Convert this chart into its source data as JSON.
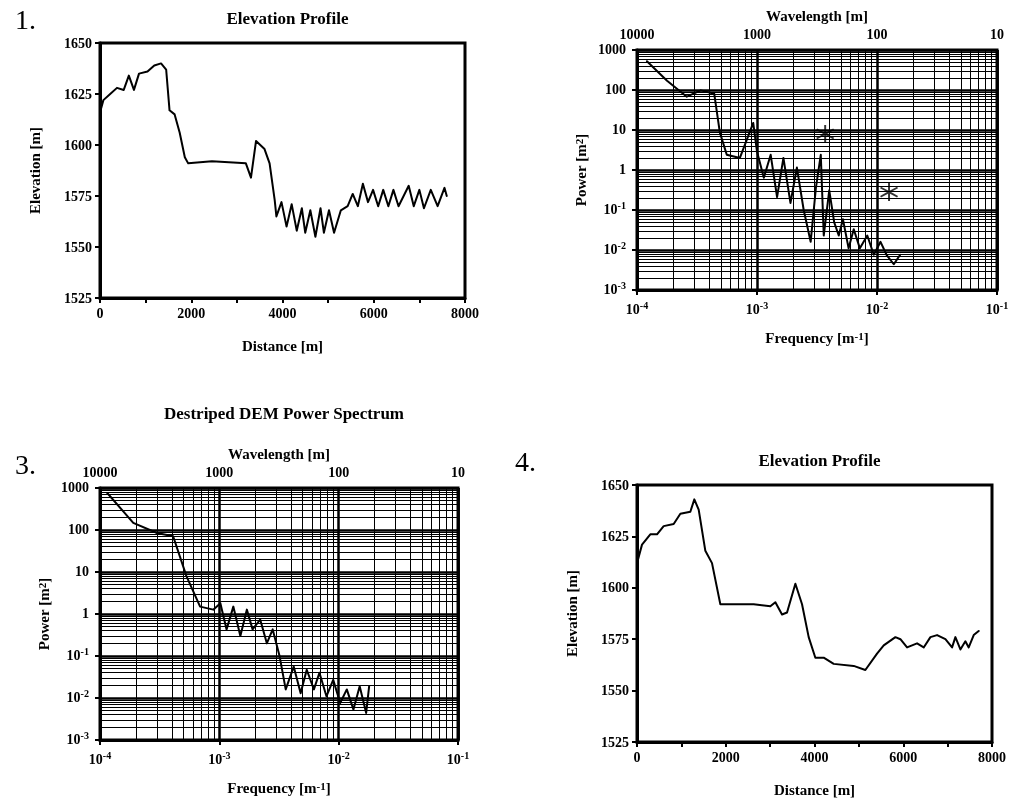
{
  "chart_data": [
    {
      "type": "line",
      "title": "Elevation Profile",
      "xlabel": "Distance [m]",
      "ylabel": "Elevation [m]",
      "annotations": [
        "1."
      ],
      "color": "#000000",
      "grid": false,
      "x": [
        0,
        74,
        223,
        372,
        520,
        632,
        744,
        855,
        1041,
        1190,
        1338,
        1450,
        1524,
        1636,
        1747,
        1859,
        1933,
        2454,
        3197,
        3309,
        3420,
        3606,
        3717,
        3829,
        3866,
        3978,
        4089,
        4201,
        4312,
        4424,
        4498,
        4610,
        4721,
        4833,
        4907,
        5019,
        5130,
        5279,
        5428,
        5539,
        5651,
        5762,
        5874,
        5985,
        6097,
        6208,
        6320,
        6431,
        6543,
        6766,
        6877,
        7000,
        7100,
        7250,
        7400,
        7550,
        7600
      ],
      "values": [
        1616,
        1622,
        1625,
        1628,
        1627,
        1634,
        1627,
        1635,
        1636,
        1639,
        1640,
        1637,
        1617,
        1615,
        1606,
        1594,
        1591,
        1592,
        1591,
        1584,
        1602,
        1598,
        1591,
        1573,
        1565,
        1572,
        1560,
        1571,
        1558,
        1569,
        1557,
        1568,
        1555,
        1569,
        1557,
        1568,
        1557,
        1568,
        1570,
        1576,
        1570,
        1581,
        1572,
        1578,
        1570,
        1578,
        1570,
        1578,
        1570,
        1580,
        1570,
        1578,
        1569,
        1578,
        1570,
        1579,
        1575
      ],
      "xlim": [
        0,
        8000
      ],
      "xticks": [
        0,
        {
          "value": 1000,
          "label": null
        },
        2000,
        {
          "value": 3000,
          "label": null
        },
        4000,
        {
          "value": 5000,
          "label": null
        },
        6000,
        {
          "value": 7000,
          "label": null
        },
        8000
      ],
      "ylim": [
        1525,
        1650
      ],
      "yticks": [
        1525,
        1550,
        1575,
        1600,
        1625,
        1650
      ]
    },
    {
      "type": "line",
      "xlabel": "Frequency [m$^{-1}$]",
      "ylabel": "Power [m$^{2}$]",
      "x2label": "Wavelength [m]",
      "log": "xy",
      "grid": true,
      "annotations": [
        "10000",
        "1000",
        "100",
        "10"
      ],
      "series": [
        {
          "type": "line",
          "color": "#000000",
          "x": [
            0.000121,
            0.000178,
            0.00026,
            0.00034,
            0.00044,
            0.00049,
            0.00056,
            0.00072,
            0.00093,
            0.001,
            0.00114,
            0.0013,
            0.00147,
            0.00166,
            0.0019,
            0.00215,
            0.00245,
            0.0028,
            0.0031,
            0.0034,
            0.0036,
            0.004,
            0.0044,
            0.0048,
            0.0052,
            0.0058,
            0.0064,
            0.0072,
            0.0083,
            0.0094,
            0.0107,
            0.012,
            0.0138,
            0.0156
          ],
          "values": [
            525,
            170,
            68,
            98,
            81,
            8.7,
            2.4,
            2,
            15,
            2.9,
            0.64,
            2.4,
            0.21,
            2,
            0.15,
            1.15,
            0.1,
            0.016,
            0.37,
            2.4,
            0.023,
            0.31,
            0.049,
            0.023,
            0.059,
            0.011,
            0.033,
            0.011,
            0.023,
            0.0076,
            0.016,
            0.0076,
            0.0044,
            0.0076
          ]
        },
        {
          "type": "scatter",
          "marker": "star",
          "color": "#000000",
          "x": [
            0.0037,
            0.0126
          ],
          "values": [
            8,
            0.28
          ]
        }
      ],
      "xlim": [
        0.0001,
        0.1
      ],
      "xticks": [
        {
          "value": 0.0001,
          "label": "10$^{-4}$"
        },
        {
          "value": 0.001,
          "label": "10$^{-3}$"
        },
        {
          "value": 0.01,
          "label": "10$^{-2}$"
        },
        {
          "value": 0.1,
          "label": "10$^{-1}$"
        }
      ],
      "ylim": [
        0.001,
        1000
      ],
      "yticks": [
        {
          "value": 0.001,
          "label": "10$^{-3}$"
        },
        {
          "value": 0.01,
          "label": "10$^{-2}$"
        },
        {
          "value": 0.1,
          "label": "10$^{-1}$"
        },
        1,
        10,
        100,
        1000
      ]
    },
    {
      "type": "line",
      "title": "Destriped DEM Power Spectrum",
      "xlabel": "Frequency [m$^{-1}$]",
      "ylabel": "Power [m$^{2}$]",
      "x2label": "Wavelength [m]",
      "annotations": [
        "3.",
        "10000",
        "1000",
        "100",
        "10"
      ],
      "log": "xy",
      "grid": true,
      "color": "#000000",
      "x": [
        0.000115,
        0.00019,
        0.0003,
        0.00041,
        0.00053,
        0.00069,
        0.00089,
        0.00102,
        0.00115,
        0.00131,
        0.0015,
        0.0017,
        0.0019,
        0.0022,
        0.0025,
        0.0028,
        0.0032,
        0.0036,
        0.0042,
        0.0048,
        0.0054,
        0.0062,
        0.0069,
        0.0079,
        0.009,
        0.0103,
        0.0117,
        0.0133,
        0.015,
        0.017,
        0.018
      ],
      "values": [
        760,
        148,
        85,
        71,
        8,
        1.5,
        1.27,
        1.8,
        0.43,
        1.5,
        0.3,
        1.27,
        0.43,
        0.74,
        0.2,
        0.43,
        0.098,
        0.016,
        0.056,
        0.013,
        0.047,
        0.016,
        0.04,
        0.011,
        0.027,
        0.0076,
        0.016,
        0.0053,
        0.019,
        0.0044,
        0.019
      ],
      "xlim": [
        0.0001,
        0.1
      ],
      "xticks": [
        {
          "value": 0.0001,
          "label": "10$^{-4}$"
        },
        {
          "value": 0.001,
          "label": "10$^{-3}$"
        },
        {
          "value": 0.01,
          "label": "10$^{-2}$"
        },
        {
          "value": 0.1,
          "label": "10$^{-1}$"
        }
      ],
      "ylim": [
        0.001,
        1000
      ],
      "yticks": [
        {
          "value": 0.001,
          "label": "10$^{-3}$"
        },
        {
          "value": 0.01,
          "label": "10$^{-2}$"
        },
        {
          "value": 0.1,
          "label": "10$^{-1}$"
        },
        1,
        10,
        100,
        1000
      ]
    },
    {
      "type": "line",
      "title": "Elevation Profile",
      "xlabel": "Distance [m]",
      "ylabel": "Elevation [m]",
      "annotations": [
        "4."
      ],
      "color": "#000000",
      "grid": false,
      "x": [
        0,
        113,
        300,
        451,
        601,
        826,
        977,
        1202,
        1292,
        1390,
        1540,
        1690,
        1878,
        2179,
        2630,
        3005,
        3118,
        3268,
        3381,
        3569,
        3719,
        3869,
        4019,
        4207,
        4433,
        4883,
        5146,
        5409,
        5560,
        5823,
        5936,
        6086,
        6311,
        6461,
        6612,
        6762,
        6950,
        7100,
        7175,
        7288,
        7400,
        7475,
        7588,
        7700
      ],
      "values": [
        1612,
        1621,
        1626,
        1626,
        1630,
        1631,
        1636,
        1637,
        1643,
        1638,
        1618,
        1612,
        1592,
        1592,
        1592,
        1591,
        1593,
        1587,
        1588,
        1602,
        1592,
        1576,
        1566,
        1566,
        1563,
        1562,
        1560,
        1568,
        1572,
        1576,
        1575,
        1571,
        1573,
        1571,
        1576,
        1577,
        1575,
        1571,
        1576,
        1570,
        1574,
        1571,
        1577,
        1579
      ],
      "xlim": [
        0,
        8000
      ],
      "xticks": [
        0,
        {
          "value": 1000,
          "label": null
        },
        2000,
        {
          "value": 3000,
          "label": null
        },
        4000,
        {
          "value": 5000,
          "label": null
        },
        6000,
        {
          "value": 7000,
          "label": null
        },
        8000
      ],
      "ylim": [
        1525,
        1650
      ],
      "yticks": [
        1525,
        1550,
        1575,
        1600,
        1625,
        1650
      ]
    }
  ]
}
